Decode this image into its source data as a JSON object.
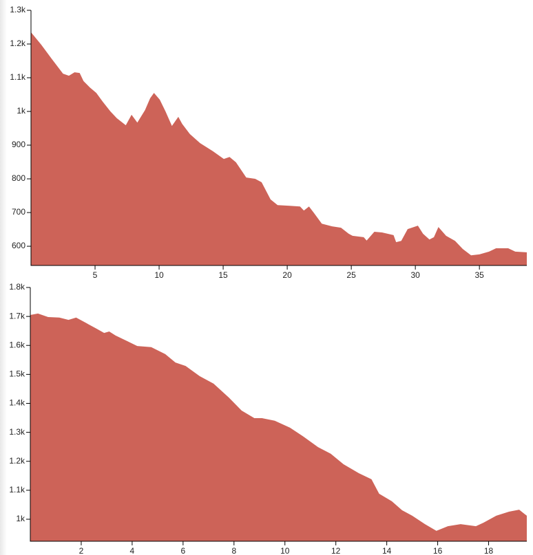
{
  "chart_data": [
    {
      "type": "area",
      "color": "#cd6358",
      "x": [
        0,
        0.8,
        1.6,
        2.5,
        2.96,
        3.4,
        3.8,
        4.1,
        4.6,
        5.1,
        5.6,
        6.2,
        6.7,
        7.4,
        7.85,
        8.3,
        8.9,
        9.3,
        9.6,
        10.05,
        10.5,
        11.0,
        11.5,
        11.8,
        12.4,
        13.2,
        14.2,
        15.05,
        15.5,
        16.0,
        16.8,
        17.5,
        18.0,
        18.7,
        19.25,
        20.2,
        21.0,
        21.3,
        21.7,
        22.1,
        22.7,
        23.5,
        24.2,
        24.8,
        25.1,
        25.97,
        26.2,
        26.8,
        27.4,
        28.3,
        28.5,
        28.9,
        29.4,
        30.2,
        30.6,
        31.1,
        31.45,
        31.8,
        32.4,
        33.1,
        33.7,
        34.35,
        35.0,
        35.75,
        36.3,
        37.25,
        37.8,
        38.7
      ],
      "values": [
        1235,
        1198,
        1157,
        1112,
        1106,
        1116,
        1114,
        1090,
        1071,
        1055,
        1029,
        1000,
        980,
        959,
        990,
        967,
        1004,
        1039,
        1055,
        1035,
        1000,
        957,
        984,
        963,
        933,
        906,
        882,
        859,
        865,
        849,
        804,
        800,
        790,
        739,
        722,
        720,
        718,
        706,
        718,
        698,
        667,
        659,
        655,
        637,
        631,
        627,
        617,
        643,
        641,
        633,
        612,
        616,
        651,
        661,
        637,
        620,
        627,
        657,
        631,
        616,
        592,
        573,
        576,
        584,
        594,
        594,
        584,
        582
      ],
      "xlim": [
        0,
        38.7
      ],
      "ylim": [
        543,
        1300
      ],
      "xticks": [
        5,
        10,
        15,
        20,
        25,
        30,
        35
      ],
      "yticks": [
        600,
        700,
        800,
        900,
        {
          "value": 1000,
          "label": "1k"
        },
        {
          "value": 1100,
          "label": "1.1k"
        },
        {
          "value": 1200,
          "label": "1.2k"
        },
        {
          "value": 1300,
          "label": "1.3k"
        }
      ]
    },
    {
      "type": "area",
      "color": "#cd6358",
      "x": [
        0,
        0.3,
        0.7,
        1.14,
        1.5,
        1.8,
        2.2,
        2.6,
        2.9,
        3.1,
        3.35,
        3.8,
        4.2,
        4.75,
        5.3,
        5.7,
        6.1,
        6.65,
        7.2,
        7.8,
        8.3,
        8.8,
        9.1,
        9.6,
        10.2,
        10.7,
        11.3,
        11.8,
        12.3,
        12.9,
        13.4,
        13.7,
        14.2,
        14.6,
        15.0,
        15.5,
        15.95,
        16.4,
        16.9,
        17.5,
        17.8,
        18.3,
        18.8,
        19.2,
        19.5
      ],
      "values": [
        1705,
        1710,
        1698,
        1696,
        1688,
        1696,
        1677,
        1658,
        1643,
        1648,
        1634,
        1615,
        1598,
        1594,
        1570,
        1541,
        1529,
        1494,
        1468,
        1420,
        1375,
        1349,
        1349,
        1340,
        1316,
        1287,
        1249,
        1226,
        1190,
        1159,
        1138,
        1088,
        1062,
        1031,
        1012,
        983,
        960,
        976,
        983,
        976,
        988,
        1012,
        1026,
        1033,
        1012
      ],
      "xlim": [
        0,
        19.5
      ],
      "ylim": [
        924,
        1800
      ],
      "xticks": [
        2,
        4,
        6,
        8,
        10,
        12,
        14,
        16,
        18
      ],
      "yticks": [
        {
          "value": 1000,
          "label": "1k"
        },
        {
          "value": 1100,
          "label": "1.1k"
        },
        {
          "value": 1200,
          "label": "1.2k"
        },
        {
          "value": 1300,
          "label": "1.3k"
        },
        {
          "value": 1400,
          "label": "1.4k"
        },
        {
          "value": 1500,
          "label": "1.5k"
        },
        {
          "value": 1600,
          "label": "1.6k"
        },
        {
          "value": 1700,
          "label": "1.7k"
        },
        {
          "value": 1800,
          "label": "1.8k"
        }
      ]
    }
  ]
}
